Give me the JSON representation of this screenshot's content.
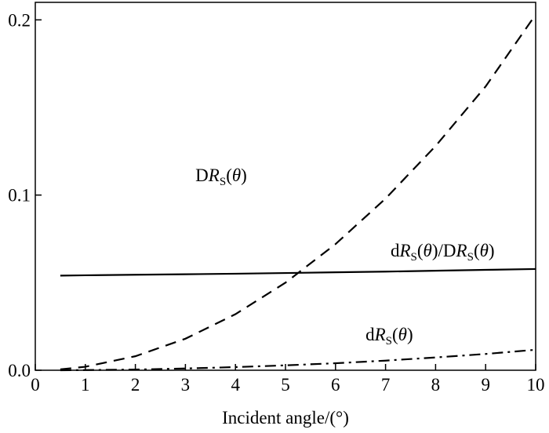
{
  "chart_data": {
    "type": "line",
    "xlabel": "Incident angle/(°)",
    "xlim": [
      0,
      10
    ],
    "ylim": [
      0,
      0.21
    ],
    "xticks": [
      0,
      1,
      2,
      3,
      4,
      5,
      6,
      7,
      8,
      9,
      10
    ],
    "yticks": [
      {
        "value": 0,
        "label": "0.0"
      },
      0.1,
      0.2
    ],
    "x": [
      0.5,
      1,
      2,
      3,
      4,
      5,
      6,
      7,
      8,
      9,
      10
    ],
    "series": [
      {
        "color": "#000000",
        "dash": "dashed",
        "values": [
          0.0005,
          0.002,
          0.008,
          0.018,
          0.032,
          0.05,
          0.072,
          0.098,
          0.128,
          0.162,
          0.203
        ]
      },
      {
        "color": "#000000",
        "dash": "solid",
        "values": [
          0.054,
          0.0542,
          0.0545,
          0.0548,
          0.0551,
          0.0555,
          0.0559,
          0.0563,
          0.0568,
          0.0573,
          0.0578
        ]
      },
      {
        "color": "#000000",
        "dash": "dashdot",
        "values": [
          0.0,
          0.0001,
          0.0004,
          0.001,
          0.0018,
          0.0028,
          0.004,
          0.0055,
          0.0073,
          0.0093,
          0.0117
        ]
      }
    ],
    "annotations": [
      {
        "x": 3.2,
        "y": 0.108,
        "parts": [
          {
            "text": "D"
          },
          {
            "text": "R",
            "style": "italic"
          },
          {
            "text": "S",
            "style": "sub"
          },
          {
            "text": "("
          },
          {
            "text": "θ",
            "style": "italic"
          },
          {
            "text": ")"
          }
        ]
      },
      {
        "x": 7.1,
        "y": 0.065,
        "parts": [
          {
            "text": "d"
          },
          {
            "text": "R",
            "style": "italic"
          },
          {
            "text": "S",
            "style": "sub"
          },
          {
            "text": "("
          },
          {
            "text": "θ",
            "style": "italic"
          },
          {
            "text": ")/D"
          },
          {
            "text": "R",
            "style": "italic"
          },
          {
            "text": "S",
            "style": "sub"
          },
          {
            "text": "("
          },
          {
            "text": "θ",
            "style": "italic"
          },
          {
            "text": ")"
          }
        ]
      },
      {
        "x": 6.6,
        "y": 0.017,
        "parts": [
          {
            "text": "d"
          },
          {
            "text": "R",
            "style": "italic"
          },
          {
            "text": "S",
            "style": "sub"
          },
          {
            "text": "("
          },
          {
            "text": "θ",
            "style": "italic"
          },
          {
            "text": ")"
          }
        ]
      }
    ]
  }
}
